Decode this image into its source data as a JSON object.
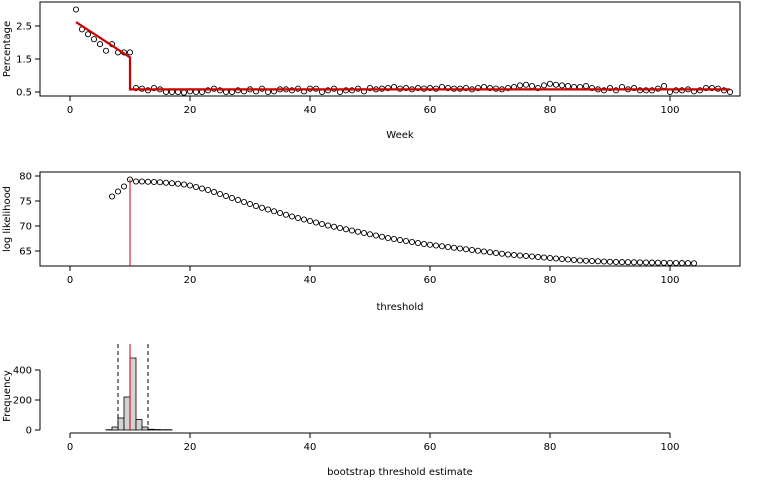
{
  "chart_data": [
    {
      "type": "scatter",
      "xlabel": "Week",
      "ylabel": "Percentage",
      "xlim": [
        0,
        110
      ],
      "ylim": [
        0.45,
        3.0
      ],
      "xticks": [
        0,
        20,
        40,
        60,
        80,
        100
      ],
      "yticks": [
        0.5,
        1.5,
        2.5
      ],
      "ytick_labels": [
        "0.5",
        "1.5",
        "2.5"
      ],
      "grid": false,
      "series": [
        {
          "kind": "points",
          "color": "#000000",
          "x": [
            1,
            2,
            3,
            4,
            5,
            6,
            7,
            8,
            9,
            10,
            11,
            12,
            13,
            14,
            15,
            16,
            17,
            18,
            19,
            20,
            21,
            22,
            23,
            24,
            25,
            26,
            27,
            28,
            29,
            30,
            31,
            32,
            33,
            34,
            35,
            36,
            37,
            38,
            39,
            40,
            41,
            42,
            43,
            44,
            45,
            46,
            47,
            48,
            49,
            50,
            51,
            52,
            53,
            54,
            55,
            56,
            57,
            58,
            59,
            60,
            61,
            62,
            63,
            64,
            65,
            66,
            67,
            68,
            69,
            70,
            71,
            72,
            73,
            74,
            75,
            76,
            77,
            78,
            79,
            80,
            81,
            82,
            83,
            84,
            85,
            86,
            87,
            88,
            89,
            90,
            91,
            92,
            93,
            94,
            95,
            96,
            97,
            98,
            99,
            100,
            101,
            102,
            103,
            104,
            105,
            106,
            107,
            108,
            109,
            110
          ],
          "y": [
            3.0,
            2.4,
            2.25,
            2.1,
            1.95,
            1.75,
            1.95,
            1.7,
            1.7,
            1.7,
            0.62,
            0.6,
            0.55,
            0.62,
            0.58,
            0.5,
            0.5,
            0.5,
            0.48,
            0.52,
            0.5,
            0.5,
            0.55,
            0.6,
            0.55,
            0.5,
            0.5,
            0.55,
            0.52,
            0.58,
            0.52,
            0.6,
            0.5,
            0.52,
            0.58,
            0.58,
            0.55,
            0.6,
            0.52,
            0.6,
            0.6,
            0.5,
            0.55,
            0.6,
            0.5,
            0.55,
            0.55,
            0.6,
            0.52,
            0.62,
            0.58,
            0.6,
            0.62,
            0.65,
            0.6,
            0.62,
            0.58,
            0.62,
            0.6,
            0.62,
            0.6,
            0.65,
            0.62,
            0.6,
            0.6,
            0.62,
            0.58,
            0.62,
            0.65,
            0.62,
            0.6,
            0.58,
            0.62,
            0.65,
            0.7,
            0.72,
            0.68,
            0.62,
            0.7,
            0.75,
            0.72,
            0.7,
            0.68,
            0.65,
            0.65,
            0.68,
            0.62,
            0.58,
            0.55,
            0.62,
            0.55,
            0.65,
            0.58,
            0.62,
            0.55,
            0.55,
            0.55,
            0.6,
            0.68,
            0.5,
            0.55,
            0.55,
            0.58,
            0.52,
            0.55,
            0.62,
            0.62,
            0.6,
            0.55,
            0.5
          ]
        },
        {
          "kind": "line",
          "color": "#cc0000",
          "x": [
            1,
            10,
            10,
            110
          ],
          "y": [
            2.62,
            1.55,
            0.58,
            0.58
          ]
        }
      ]
    },
    {
      "type": "scatter",
      "xlabel": "threshold",
      "ylabel": "log likelihood",
      "xlim": [
        0,
        110
      ],
      "ylim": [
        62,
        80.5
      ],
      "xticks": [
        0,
        20,
        40,
        60,
        80,
        100
      ],
      "yticks": [
        65,
        70,
        75,
        80
      ],
      "grid": false,
      "series": [
        {
          "kind": "points",
          "color": "#000000",
          "x": [
            7,
            8,
            9,
            10,
            11,
            12,
            13,
            14,
            15,
            16,
            17,
            18,
            19,
            20,
            21,
            22,
            23,
            24,
            25,
            26,
            27,
            28,
            29,
            30,
            31,
            32,
            33,
            34,
            35,
            36,
            37,
            38,
            39,
            40,
            41,
            42,
            43,
            44,
            45,
            46,
            47,
            48,
            49,
            50,
            51,
            52,
            53,
            54,
            55,
            56,
            57,
            58,
            59,
            60,
            61,
            62,
            63,
            64,
            65,
            66,
            67,
            68,
            69,
            70,
            71,
            72,
            73,
            74,
            75,
            76,
            77,
            78,
            79,
            80,
            81,
            82,
            83,
            84,
            85,
            86,
            87,
            88,
            89,
            90,
            91,
            92,
            93,
            94,
            95,
            96,
            97,
            98,
            99,
            100,
            101,
            102,
            103,
            104
          ],
          "y": [
            75.9,
            76.9,
            77.9,
            79.3,
            78.9,
            78.9,
            78.85,
            78.8,
            78.75,
            78.65,
            78.55,
            78.45,
            78.3,
            78.1,
            77.8,
            77.5,
            77.2,
            76.8,
            76.4,
            76.0,
            75.6,
            75.2,
            74.8,
            74.4,
            74.0,
            73.65,
            73.3,
            72.95,
            72.6,
            72.25,
            71.9,
            71.6,
            71.3,
            71.0,
            70.7,
            70.4,
            70.1,
            69.85,
            69.6,
            69.35,
            69.1,
            68.85,
            68.6,
            68.35,
            68.1,
            67.85,
            67.6,
            67.4,
            67.2,
            67.0,
            66.8,
            66.6,
            66.4,
            66.25,
            66.1,
            65.95,
            65.8,
            65.65,
            65.5,
            65.35,
            65.2,
            65.05,
            64.9,
            64.75,
            64.6,
            64.45,
            64.3,
            64.2,
            64.1,
            64.0,
            63.9,
            63.8,
            63.7,
            63.6,
            63.5,
            63.4,
            63.3,
            63.2,
            63.1,
            63.05,
            63.0,
            62.95,
            62.9,
            62.85,
            62.8,
            62.78,
            62.76,
            62.74,
            62.72,
            62.7,
            62.68,
            62.66,
            62.64,
            62.62,
            62.6,
            62.58,
            62.56,
            62.55
          ]
        }
      ],
      "vline": {
        "x": 10,
        "color": "#cc0000"
      }
    },
    {
      "type": "bar",
      "xlabel": "bootstrap threshold estimate",
      "ylabel": "Frequency",
      "xlim": [
        0,
        110
      ],
      "ylim": [
        0,
        520
      ],
      "xticks": [
        0,
        20,
        40,
        60,
        80,
        100
      ],
      "yticks": [
        0,
        200,
        400
      ],
      "grid": false,
      "bins": [
        {
          "x0": 6,
          "x1": 7,
          "value": 2
        },
        {
          "x0": 7,
          "x1": 8,
          "value": 20
        },
        {
          "x0": 8,
          "x1": 9,
          "value": 80
        },
        {
          "x0": 9,
          "x1": 10,
          "value": 220
        },
        {
          "x0": 10,
          "x1": 11,
          "value": 480
        },
        {
          "x0": 11,
          "x1": 12,
          "value": 70
        },
        {
          "x0": 12,
          "x1": 13,
          "value": 20
        },
        {
          "x0": 13,
          "x1": 14,
          "value": 5
        },
        {
          "x0": 14,
          "x1": 15,
          "value": 3
        },
        {
          "x0": 15,
          "x1": 16,
          "value": 2
        },
        {
          "x0": 16,
          "x1": 17,
          "value": 2
        }
      ],
      "vlines_dashed": [
        8,
        13
      ],
      "vline_solid": {
        "x": 10,
        "color": "#cc0000"
      }
    }
  ]
}
